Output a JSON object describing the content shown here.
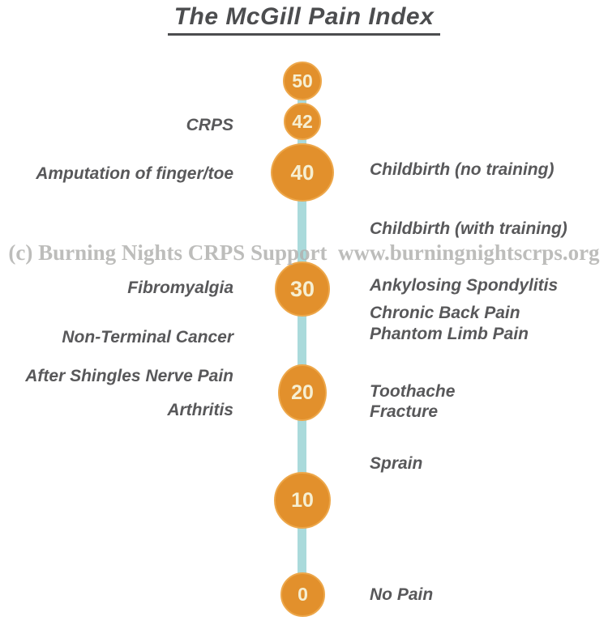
{
  "title": "The McGill Pain Index",
  "watermark": "(c) Burning Nights CRPS Support  www.burningnightscrps.org",
  "colors": {
    "circle_fill": "#e2902c",
    "circle_rim": "#eda74a",
    "circle_number_text": "#f6efd2",
    "scale_line": "#aadadb",
    "label_text": "#58585a",
    "title_text": "#4c4d4f",
    "watermark_text": "#b2b2b0",
    "background": "#ffffff"
  },
  "chart_data": {
    "type": "scale",
    "title": "The McGill Pain Index",
    "orientation": "vertical",
    "axis_range": [
      0,
      50
    ],
    "direction": "highest value at top",
    "scale_points": [
      50,
      42,
      40,
      30,
      20,
      10,
      0
    ],
    "left_labels": [
      {
        "text": "CRPS",
        "approx_value": 42
      },
      {
        "text": "Amputation of finger/toe",
        "approx_value": 40
      },
      {
        "text": "Fibromyalgia",
        "approx_value": 30
      },
      {
        "text": "Non-Terminal Cancer",
        "approx_value": 27
      },
      {
        "text": "After Shingles Nerve Pain",
        "approx_value": 24
      },
      {
        "text": "Arthritis",
        "approx_value": 19
      },
      {
        "text": "",
        "approx_value": null
      }
    ],
    "right_labels": [
      {
        "text": "Childbirth (no training)",
        "approx_value": 40
      },
      {
        "text": "Childbirth (with training)",
        "approx_value": 35
      },
      {
        "text": "Ankylosing Spondylitis",
        "approx_value": 30
      },
      {
        "text": "Chronic Back Pain",
        "approx_value": 28
      },
      {
        "text": "Phantom Limb Pain",
        "approx_value": 26
      },
      {
        "text": "Toothache",
        "approx_value": 20
      },
      {
        "text": "Fracture",
        "approx_value": 19
      },
      {
        "text": "Sprain",
        "approx_value": 13
      },
      {
        "text": "No Pain",
        "approx_value": 0
      }
    ],
    "legend_position": "none",
    "grid": false
  }
}
